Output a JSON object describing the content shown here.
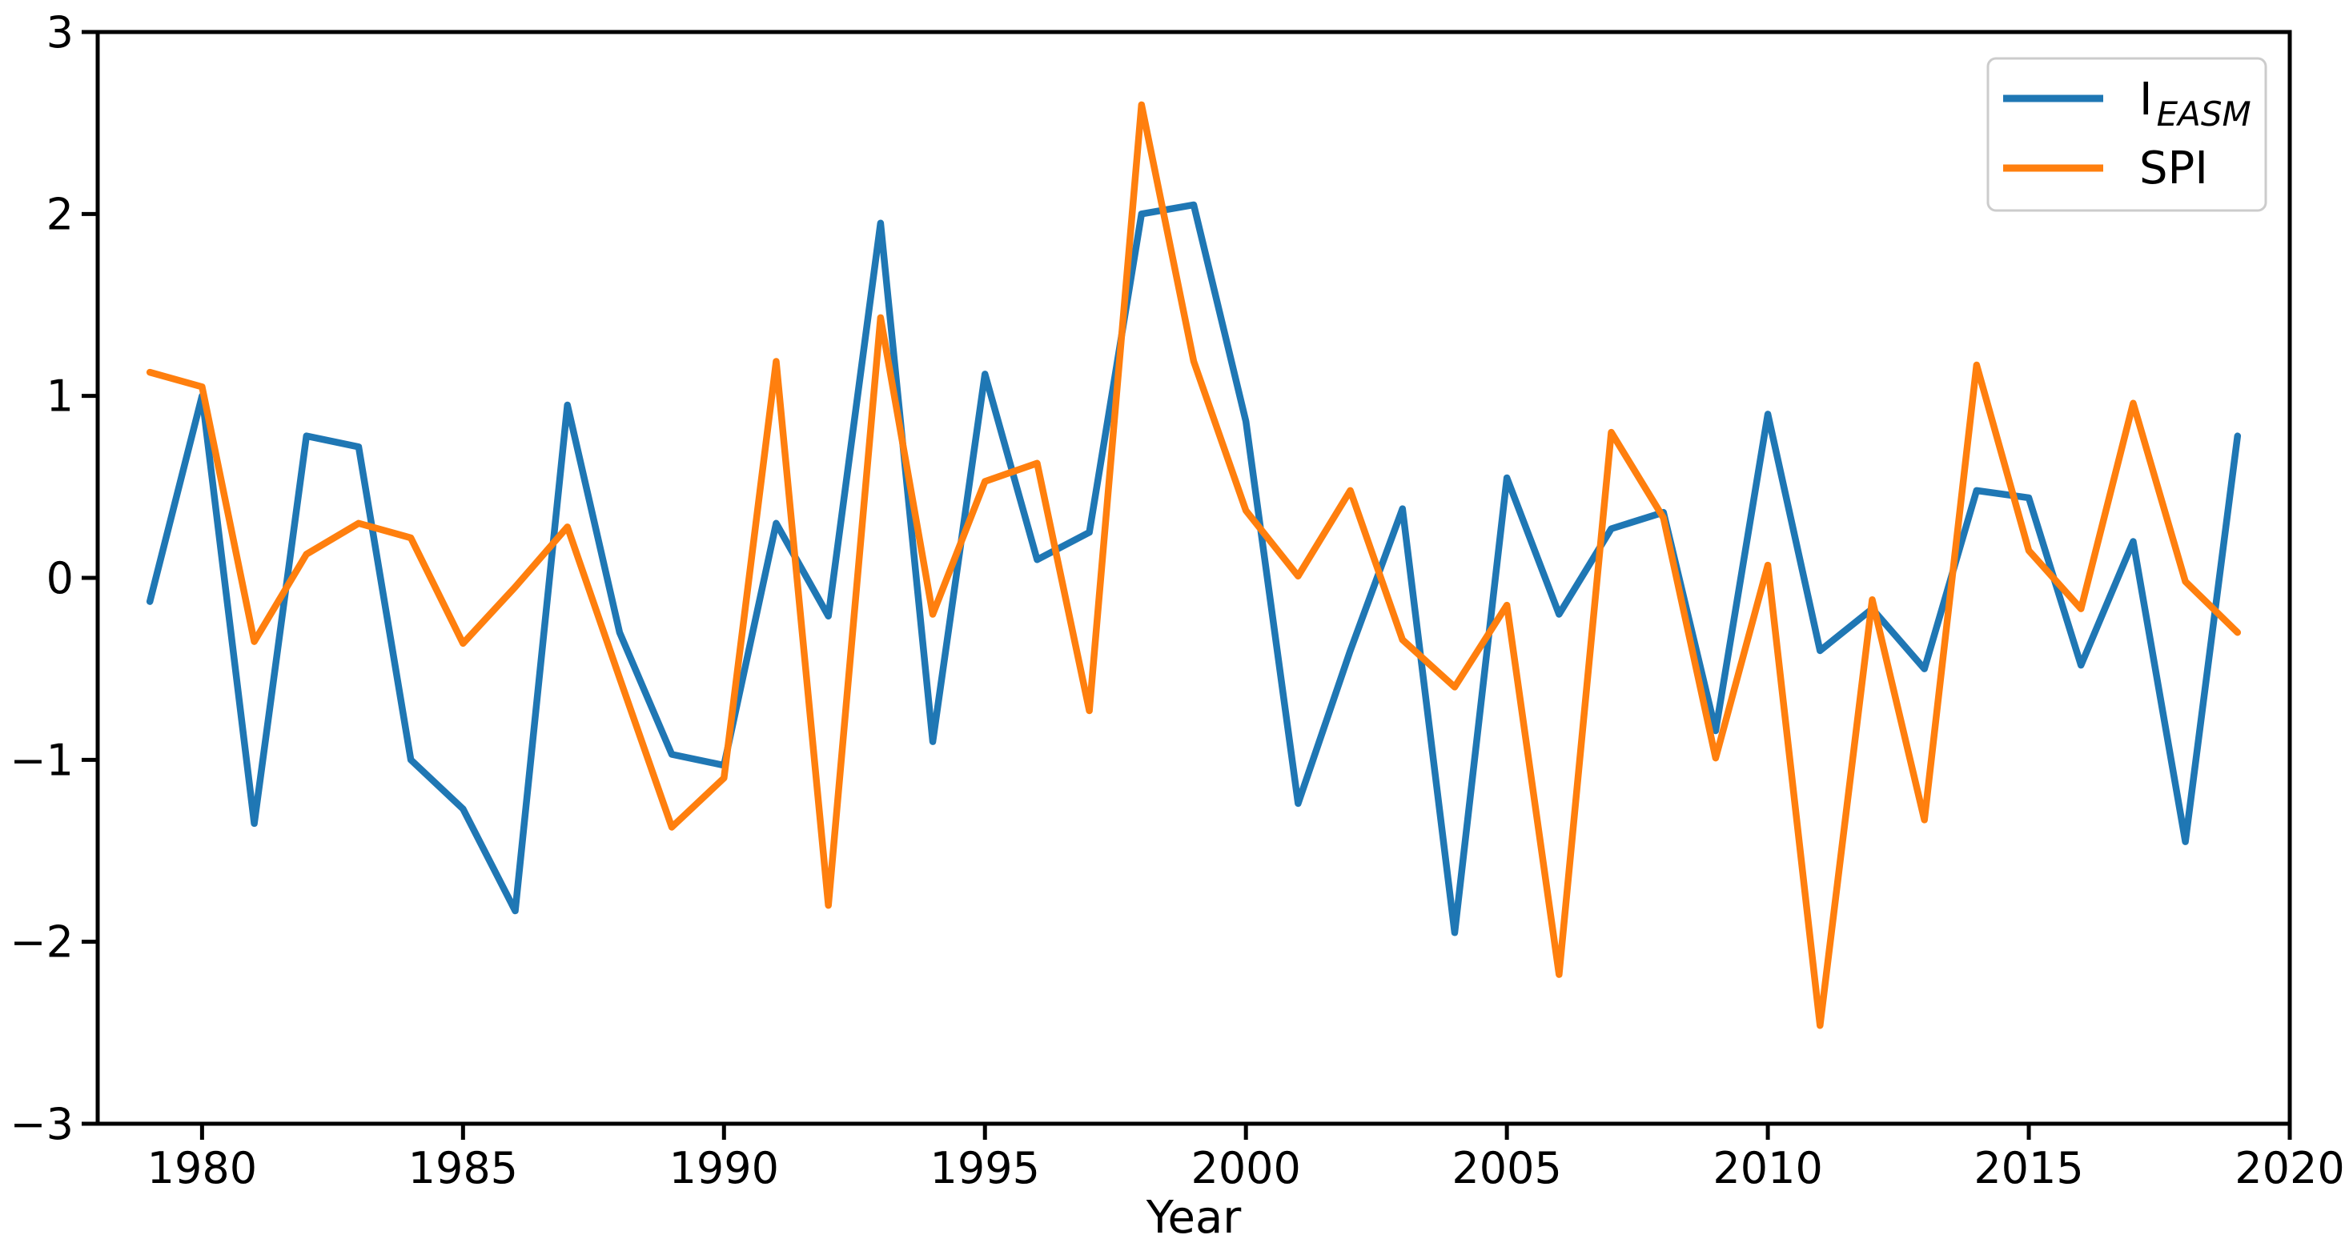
{
  "figure": {
    "background_color": "#ffffff",
    "spine_color": "#000000",
    "tick_color": "#000000"
  },
  "axes": {
    "xlabel": "Year",
    "x_ticks": [
      1980,
      1985,
      1990,
      1995,
      2000,
      2005,
      2010,
      2015,
      2020
    ],
    "y_tick_labels": [
      "3",
      "2",
      "1",
      "0",
      "−1",
      "−2",
      "−3"
    ],
    "y_tick_values": [
      3,
      2,
      1,
      0,
      -1,
      -2,
      -3
    ],
    "xlim": [
      1978,
      2020
    ],
    "ylim": [
      -3,
      3
    ]
  },
  "legend": {
    "position": "upper right",
    "series1_main": "I",
    "series1_sub": "EASM",
    "series2": "SPI",
    "border_color": "#cccccc"
  },
  "chart_data": {
    "type": "line",
    "title": "",
    "xlabel": "Year",
    "ylabel": "",
    "xlim": [
      1978,
      2020
    ],
    "ylim": [
      -3,
      3
    ],
    "grid": false,
    "legend_position": "upper right",
    "x": [
      1979,
      1980,
      1981,
      1982,
      1983,
      1984,
      1985,
      1986,
      1987,
      1988,
      1989,
      1990,
      1991,
      1992,
      1993,
      1994,
      1995,
      1996,
      1997,
      1998,
      1999,
      2000,
      2001,
      2002,
      2003,
      2004,
      2005,
      2006,
      2007,
      2008,
      2009,
      2010,
      2011,
      2012,
      2013,
      2014,
      2015,
      2016,
      2017,
      2018,
      2019
    ],
    "series": [
      {
        "id": "ieasm",
        "name": "I_EASM",
        "color": "#1f77b4",
        "values": [
          -0.13,
          1.0,
          -1.35,
          0.78,
          0.72,
          -1.0,
          -1.27,
          -1.83,
          0.95,
          -0.3,
          -0.97,
          -1.03,
          0.3,
          -0.21,
          1.95,
          -0.9,
          1.12,
          0.1,
          0.25,
          2.0,
          2.05,
          0.86,
          -1.24,
          -0.4,
          0.38,
          -1.95,
          0.55,
          -0.2,
          0.27,
          0.36,
          -0.84,
          0.9,
          -0.4,
          -0.17,
          -0.5,
          0.48,
          0.44,
          -0.48,
          0.2,
          -1.45,
          0.78
        ]
      },
      {
        "id": "spi",
        "name": "SPI",
        "color": "#ff7f0e",
        "values": [
          1.13,
          1.05,
          -0.35,
          0.13,
          0.3,
          0.22,
          -0.36,
          -0.05,
          0.28,
          -0.55,
          -1.37,
          -1.1,
          1.19,
          -1.8,
          1.43,
          -0.2,
          0.53,
          0.63,
          -0.73,
          2.6,
          1.19,
          0.37,
          0.01,
          0.48,
          -0.34,
          -0.6,
          -0.15,
          -2.18,
          0.8,
          0.33,
          -0.99,
          0.07,
          -2.46,
          -0.12,
          -1.33,
          1.17,
          0.15,
          -0.17,
          0.96,
          -0.02,
          -0.3
        ]
      }
    ]
  }
}
